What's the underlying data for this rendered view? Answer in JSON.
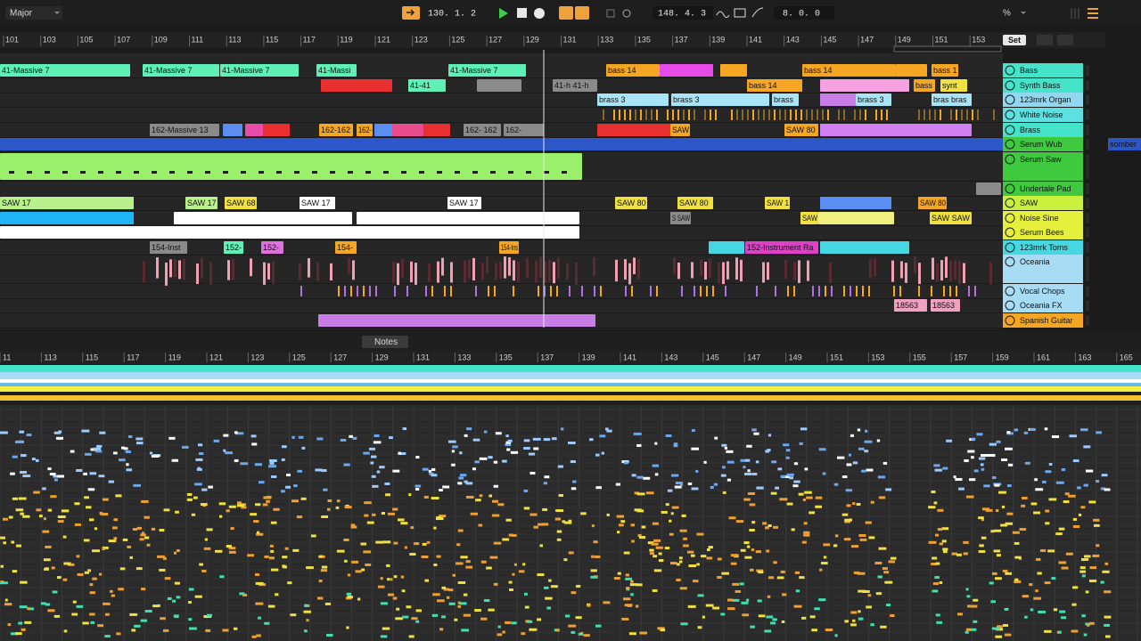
{
  "toolbar": {
    "scale": "Major",
    "tempo_position": "130.  1.  2",
    "position": "148.  4.  3",
    "loop_length": "8.  0.  0",
    "zoom": "%",
    "set": "Set"
  },
  "arrangement": {
    "ruler": [
      "101",
      "103",
      "105",
      "107",
      "109",
      "111",
      "113",
      "115",
      "117",
      "119",
      "121",
      "123",
      "125",
      "127",
      "129",
      "131",
      "133",
      "135",
      "137",
      "139",
      "141",
      "143",
      "145",
      "147",
      "149",
      "151",
      "153"
    ],
    "tracks": [
      {
        "name": "Bass",
        "clips": [
          "41-Massive 7",
          "41-Massive 7",
          "41-Massive 7",
          "41-Massi",
          "41-Massive 7",
          "bass 14",
          "bass 14",
          "bass 1"
        ]
      },
      {
        "name": "Synth Bass",
        "clips": [
          "41-41",
          "41-h 41-h",
          "bass 14",
          "bass",
          "synt"
        ]
      },
      {
        "name": "123mrk Organ",
        "clips": [
          "brass 3",
          "brass 3",
          "brass",
          "brass 3",
          "bras bras"
        ]
      },
      {
        "name": "White Noise",
        "clips": []
      },
      {
        "name": "Brass",
        "clips": [
          "162-Massive 13",
          "162-162",
          "162-",
          "162- 162",
          "162-",
          "SAW",
          "SAW 80"
        ]
      },
      {
        "name": "Serum Wub",
        "clips": [
          "somber"
        ]
      },
      {
        "name": "Serum Saw",
        "clips": []
      },
      {
        "name": "Undertale Pad",
        "clips": []
      },
      {
        "name": "SAW",
        "clips": [
          "SAW 17",
          "SAW 17",
          "SAW 68",
          "SAW 17",
          "SAW 17",
          "SAW 80",
          "SAW 80",
          "SAW 1",
          "SAW 80"
        ]
      },
      {
        "name": "Noise Sine",
        "clips": [
          "S SAW",
          "SAW",
          "SAW SAW"
        ]
      },
      {
        "name": "Serum Bees",
        "clips": []
      },
      {
        "name": "123mrk Toms",
        "clips": [
          "154-Inst",
          "152-",
          "152-",
          "154-",
          "154-Ins",
          "152-Instrument Ra"
        ]
      },
      {
        "name": "Oceania",
        "clips": []
      },
      {
        "name": "Vocal Chops",
        "clips": []
      },
      {
        "name": "Oceania FX",
        "clips": [
          "18563",
          "18563"
        ]
      },
      {
        "name": "Spanish Guitar",
        "clips": []
      }
    ]
  },
  "detail": {
    "tab": "Notes",
    "ruler": [
      "11",
      "113",
      "115",
      "117",
      "119",
      "121",
      "123",
      "125",
      "127",
      "129",
      "131",
      "133",
      "135",
      "137",
      "139",
      "141",
      "143",
      "145",
      "147",
      "149",
      "151",
      "153",
      "155",
      "157",
      "159",
      "161",
      "163",
      "165"
    ]
  }
}
